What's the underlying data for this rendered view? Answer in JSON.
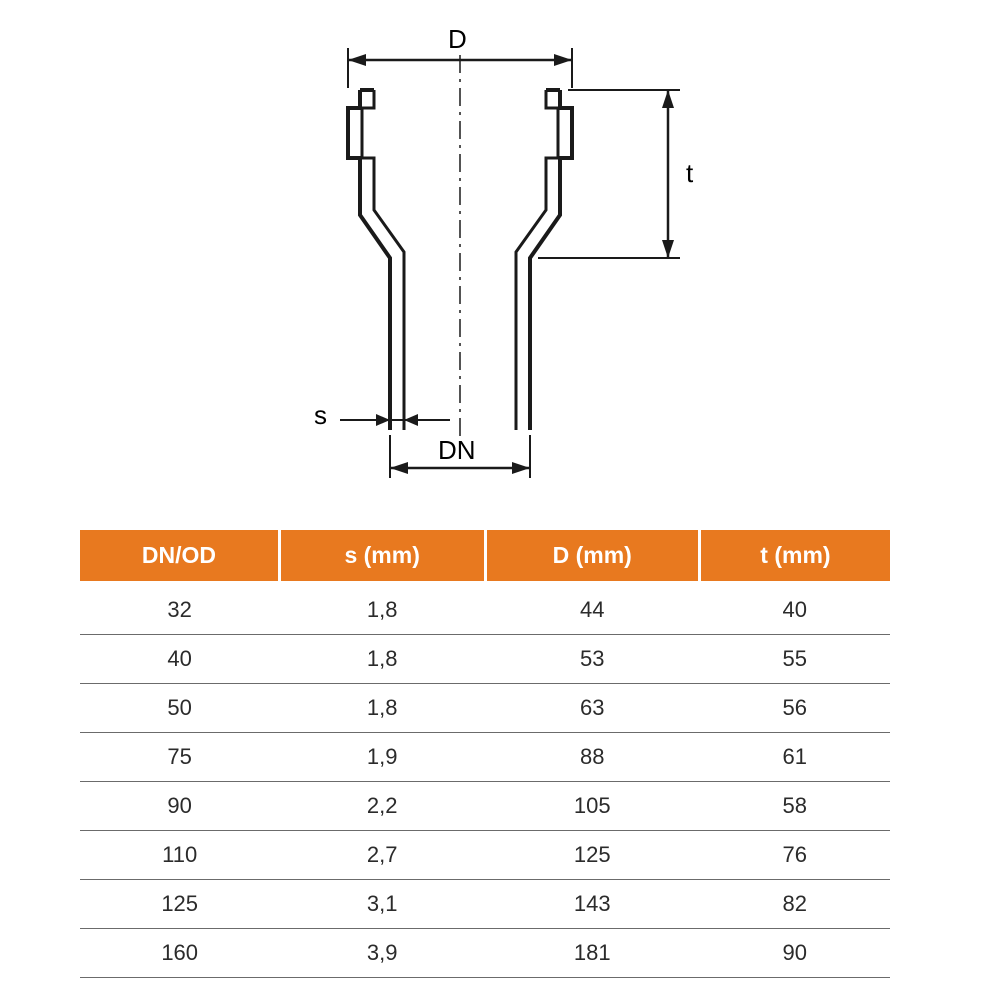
{
  "diagram": {
    "labels": {
      "D": "D",
      "t": "t",
      "s": "s",
      "DN": "DN"
    },
    "colors": {
      "stroke": "#1a1a1a",
      "centerline": "#1a1a1a",
      "text": "#1a1a1a",
      "background": "#ffffff"
    },
    "stroke_width_outer": 4,
    "stroke_width_dim": 2.5
  },
  "table": {
    "header_bg": "#e8791f",
    "header_text_color": "#ffffff",
    "row_text_color": "#2b2b2b",
    "row_border_color": "#6b6b6b",
    "columns": [
      "DN/OD",
      "s (mm)",
      "D (mm)",
      "t (mm)"
    ],
    "rows": [
      [
        "32",
        "1,8",
        "44",
        "40"
      ],
      [
        "40",
        "1,8",
        "53",
        "55"
      ],
      [
        "50",
        "1,8",
        "63",
        "56"
      ],
      [
        "75",
        "1,9",
        "88",
        "61"
      ],
      [
        "90",
        "2,2",
        "105",
        "58"
      ],
      [
        "110",
        "2,7",
        "125",
        "76"
      ],
      [
        "125",
        "3,1",
        "143",
        "82"
      ],
      [
        "160",
        "3,9",
        "181",
        "90"
      ]
    ]
  }
}
